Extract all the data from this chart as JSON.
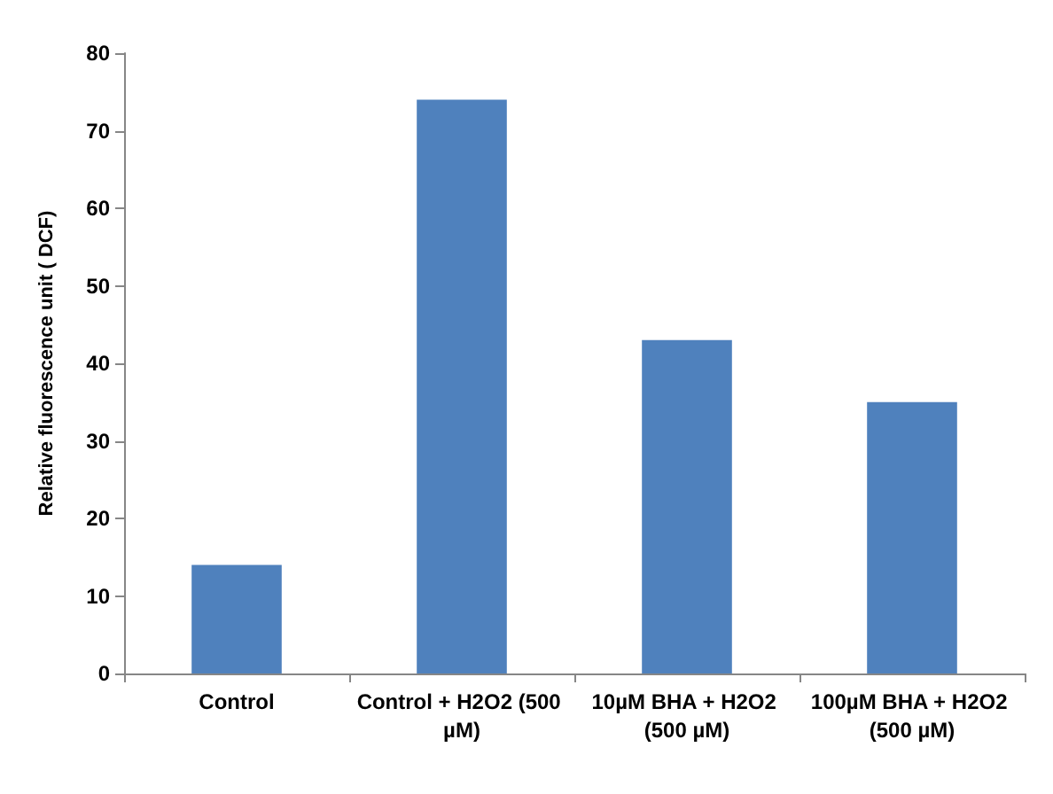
{
  "chart_data": {
    "type": "bar",
    "ylabel": "Relative fluorescence unit ( DCF)",
    "categories": [
      "Control",
      "Control + H2O2 (500 µM)",
      "10µM BHA + H2O2 (500 µM)",
      "100µM BHA + H2O2 (500 µM)"
    ],
    "values": [
      14,
      74,
      43,
      35
    ],
    "color": "#4f81bd",
    "ylim": [
      0,
      80
    ],
    "yticks": [
      0,
      10,
      20,
      30,
      40,
      50,
      60,
      70,
      80
    ],
    "grid": false
  }
}
